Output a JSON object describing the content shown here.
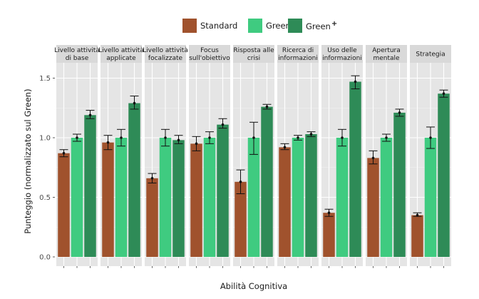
{
  "chart_data": {
    "type": "bar",
    "title": "",
    "xlabel": "Abilità Cognitiva",
    "ylabel": "Punteggio (normalizzato sul Green)",
    "ylim": [
      0,
      1.6
    ],
    "yticks": [
      "0.0",
      "0.5",
      "1.0",
      "1.5"
    ],
    "ytick_values": [
      0.0,
      0.5,
      1.0,
      1.5
    ],
    "grid": true,
    "legend_position": "top",
    "legend": [
      {
        "name": "Standard",
        "color": "#A0522D"
      },
      {
        "name": "Green",
        "color": "#3FCB80"
      },
      {
        "name": "Green",
        "suffix": "+",
        "color": "#2E8B57"
      }
    ],
    "facets": [
      {
        "label": [
          "Livello attività",
          "di base"
        ],
        "values": [
          0.87,
          1.0,
          1.19
        ],
        "err_low": [
          0.84,
          0.97,
          1.16
        ],
        "err_high": [
          0.9,
          1.03,
          1.23
        ]
      },
      {
        "label": [
          "Livello attività",
          "applicate"
        ],
        "values": [
          0.96,
          1.0,
          1.29
        ],
        "err_low": [
          0.9,
          0.93,
          1.24
        ],
        "err_high": [
          1.02,
          1.07,
          1.35
        ]
      },
      {
        "label": [
          "Livello attività",
          "focalizzate"
        ],
        "values": [
          0.66,
          1.0,
          0.98
        ],
        "err_low": [
          0.62,
          0.93,
          0.95
        ],
        "err_high": [
          0.7,
          1.07,
          1.02
        ]
      },
      {
        "label": [
          "Focus",
          "sull'obiettivo"
        ],
        "values": [
          0.95,
          1.0,
          1.11
        ],
        "err_low": [
          0.89,
          0.95,
          1.08
        ],
        "err_high": [
          1.01,
          1.05,
          1.16
        ]
      },
      {
        "label": [
          "Risposta alle",
          "crisi"
        ],
        "values": [
          0.63,
          1.0,
          1.26
        ],
        "err_low": [
          0.53,
          0.86,
          1.24
        ],
        "err_high": [
          0.73,
          1.13,
          1.28
        ]
      },
      {
        "label": [
          "Ricerca di",
          "informazioni"
        ],
        "values": [
          0.92,
          1.0,
          1.03
        ],
        "err_low": [
          0.9,
          0.98,
          1.01
        ],
        "err_high": [
          0.95,
          1.02,
          1.05
        ]
      },
      {
        "label": [
          "Uso delle",
          "informazioni"
        ],
        "values": [
          0.37,
          1.0,
          1.47
        ],
        "err_low": [
          0.34,
          0.93,
          1.41
        ],
        "err_high": [
          0.4,
          1.07,
          1.52
        ]
      },
      {
        "label": [
          "Apertura",
          "mentale"
        ],
        "values": [
          0.83,
          1.0,
          1.21
        ],
        "err_low": [
          0.78,
          0.97,
          1.18
        ],
        "err_high": [
          0.89,
          1.03,
          1.24
        ]
      },
      {
        "label": [
          "Strategia"
        ],
        "values": [
          0.35,
          1.0,
          1.37
        ],
        "err_low": [
          0.34,
          0.91,
          1.34
        ],
        "err_high": [
          0.37,
          1.09,
          1.4
        ]
      }
    ]
  }
}
